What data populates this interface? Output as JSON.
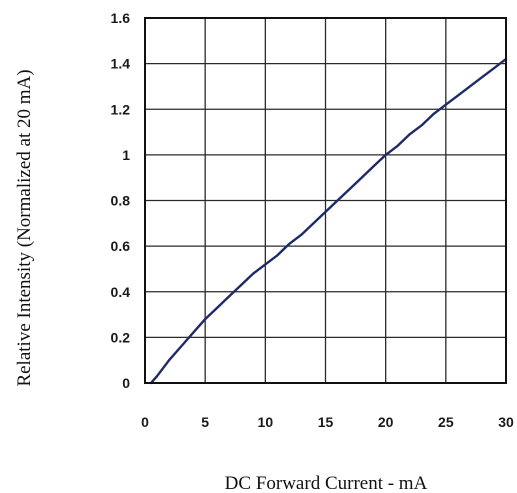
{
  "chart_data": {
    "type": "line",
    "title": "",
    "xlabel": "DC Forward Current - mA",
    "ylabel": "Relative Intensity (Normalized at 20 mA)",
    "xlim": [
      0,
      30
    ],
    "ylim": [
      0,
      1.6
    ],
    "x_ticks": [
      "0",
      "5",
      "10",
      "15",
      "20",
      "25",
      "30"
    ],
    "y_ticks": [
      "0",
      "0.2",
      "0.4",
      "0.6",
      "0.8",
      "1",
      "1.2",
      "1.4",
      "1.6"
    ],
    "grid": true,
    "legend": "none",
    "series": [
      {
        "color": "#1f2a66",
        "x": [
          0.5,
          1,
          2,
          3,
          4,
          5,
          6,
          7,
          8,
          9,
          10,
          11,
          12,
          13,
          14,
          15,
          16,
          17,
          18,
          19,
          20,
          21,
          22,
          23,
          24,
          25,
          26,
          27,
          28,
          29,
          30
        ],
        "y": [
          0.0,
          0.03,
          0.1,
          0.16,
          0.22,
          0.28,
          0.33,
          0.38,
          0.43,
          0.48,
          0.52,
          0.56,
          0.61,
          0.65,
          0.7,
          0.75,
          0.8,
          0.85,
          0.9,
          0.95,
          1.0,
          1.04,
          1.09,
          1.13,
          1.18,
          1.22,
          1.26,
          1.3,
          1.34,
          1.38,
          1.42
        ]
      }
    ]
  }
}
